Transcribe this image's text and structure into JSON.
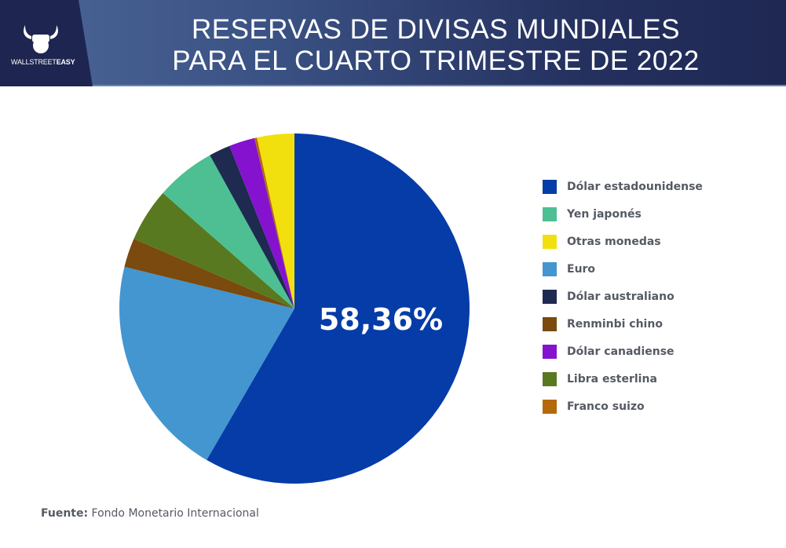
{
  "header": {
    "title_line1": "RESERVAS DE DIVISAS MUNDIALES",
    "title_line2": "PARA EL CUARTO TRIMESTRE DE 2022",
    "logo_text_light": "WALLSTREET",
    "logo_text_bold": "EASY"
  },
  "chart_data": {
    "type": "pie",
    "title": "RESERVAS DE DIVISAS MUNDIALES PARA EL CUARTO TRIMESTRE DE 2022",
    "slices": [
      {
        "name": "Dólar estadounidense",
        "value": 58.36,
        "color": "#063ca8"
      },
      {
        "name": "Euro",
        "value": 20.47,
        "color": "#4396d0"
      },
      {
        "name": "Renminbi chino",
        "value": 2.69,
        "color": "#7a4a0e"
      },
      {
        "name": "Libra esterlina",
        "value": 4.95,
        "color": "#58791f"
      },
      {
        "name": "Yen japonés",
        "value": 5.51,
        "color": "#4dbf93"
      },
      {
        "name": "Dólar australiano",
        "value": 1.97,
        "color": "#1e2a50"
      },
      {
        "name": "Dólar canadiense",
        "value": 2.38,
        "color": "#8412cf"
      },
      {
        "name": "Franco suizo",
        "value": 0.23,
        "color": "#b5690a"
      },
      {
        "name": "Otras monedas",
        "value": 3.44,
        "color": "#f2e00e"
      }
    ],
    "data_label": "58,36%",
    "legend_position": "right",
    "legend": [
      "Dólar estadounidense",
      "Yen japonés",
      "Otras monedas",
      "Euro",
      "Dólar australiano",
      "Renminbi chino",
      "Dólar canadiense",
      "Libra esterlina",
      "Franco suizo"
    ]
  },
  "source": {
    "label": "Fuente:",
    "text": "Fondo Monetario Internacional"
  }
}
